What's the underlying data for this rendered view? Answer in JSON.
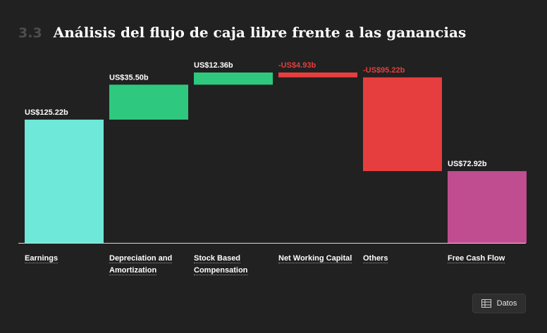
{
  "header": {
    "section_number": "3.3",
    "title": "Análisis del flujo de caja libre frente a las ganancias"
  },
  "chart_data": {
    "type": "bar",
    "subtype": "waterfall",
    "categories": [
      "Earnings",
      "Depreciation and Amortization",
      "Stock Based Compensation",
      "Net Working Capital",
      "Others",
      "Free Cash Flow"
    ],
    "category_lines": [
      [
        "Earnings"
      ],
      [
        "Depreciation and",
        "Amortization"
      ],
      [
        "Stock Based",
        "Compensation"
      ],
      [
        "Net Working Capital"
      ],
      [
        "Others"
      ],
      [
        "Free Cash Flow"
      ]
    ],
    "values": [
      125.22,
      35.5,
      12.36,
      -4.93,
      -95.22,
      72.92
    ],
    "kinds": [
      "total",
      "delta",
      "delta",
      "delta",
      "delta",
      "total"
    ],
    "data_labels": [
      "US$125.22b",
      "US$35.50b",
      "US$12.36b",
      "-US$4.93b",
      "-US$95.22b",
      "US$72.92b"
    ],
    "units": "US$ billions",
    "colors": {
      "earnings": "#6ee8d8",
      "increase": "#2ec97f",
      "decrease": "#e63e3e",
      "total": "#bf4d8f",
      "negative_label": "#e63e3e",
      "positive_label": "#ffffff",
      "baseline": "#d9d9d9"
    },
    "ylim": [
      0,
      173.08
    ],
    "grid": false,
    "legend": "none"
  },
  "controls": {
    "data_button_label": "Datos",
    "data_button_icon": "table-icon"
  }
}
